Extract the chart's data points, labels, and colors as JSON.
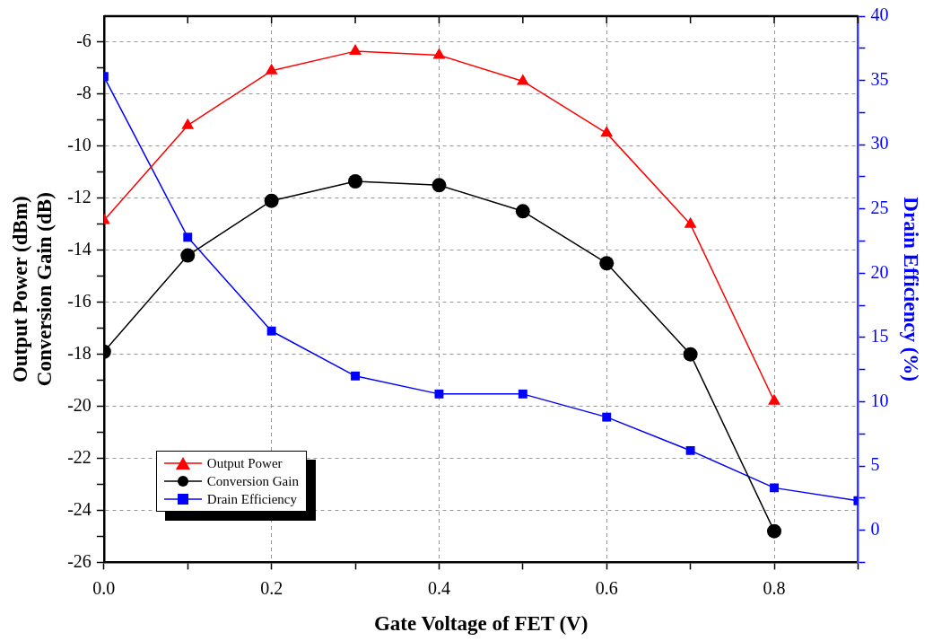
{
  "chart_data": {
    "type": "line",
    "xlabel": "Gate Voltage of FET (V)",
    "ylabel": "Output Power (dBm)\nConversion Gain (dB)",
    "y2label": "Drain Efficiency (%)",
    "x": [
      0,
      0.1,
      0.2,
      0.3,
      0.4,
      0.5,
      0.6,
      0.7,
      0.8
    ],
    "series": [
      {
        "name": "Output Power",
        "color": "#ff0000",
        "marker": "triangle",
        "values": [
          -12.85,
          -9.2,
          -7.1,
          -6.35,
          -6.5,
          -7.5,
          -9.5,
          -13.0,
          -19.8
        ]
      },
      {
        "name": "Conversion Gain",
        "color": "#000000",
        "marker": "circle",
        "values": [
          -17.9,
          -14.2,
          -12.1,
          -11.35,
          -11.5,
          -12.5,
          -14.5,
          -18.0,
          -24.8
        ]
      },
      {
        "name": "Drain Efficiency",
        "color": "#0000ff",
        "marker": "square",
        "axis": "y2",
        "x": [
          0,
          0.1,
          0.2,
          0.3,
          0.4,
          0.5,
          0.6,
          0.7,
          0.8,
          0.9
        ],
        "values": [
          35.3,
          22.8,
          15.5,
          12.0,
          10.6,
          10.6,
          8.8,
          6.2,
          3.3,
          2.3
        ]
      }
    ],
    "xlim": [
      0,
      0.9
    ],
    "xticks": [
      {
        "value": 0,
        "label": "0.0"
      },
      {
        "value": 0.1,
        "label": null
      },
      {
        "value": 0.2,
        "label": "0.2"
      },
      {
        "value": 0.3,
        "label": null
      },
      {
        "value": 0.4,
        "label": "0.4"
      },
      {
        "value": 0.5,
        "label": null
      },
      {
        "value": 0.6,
        "label": "0.6"
      },
      {
        "value": 0.7,
        "label": null
      },
      {
        "value": 0.8,
        "label": "0.8"
      },
      {
        "value": 0.9,
        "label": null
      }
    ],
    "ylim": [
      -26,
      -5
    ],
    "yticks": [
      -26,
      {
        "value": -25,
        "label": null
      },
      -24,
      {
        "value": -23,
        "label": null
      },
      -22,
      {
        "value": -21,
        "label": null
      },
      -20,
      {
        "value": -19,
        "label": null
      },
      -18,
      {
        "value": -17,
        "label": null
      },
      -16,
      {
        "value": -15,
        "label": null
      },
      -14,
      {
        "value": -13,
        "label": null
      },
      -12,
      {
        "value": -11,
        "label": null
      },
      -10,
      {
        "value": -9,
        "label": null
      },
      -8,
      {
        "value": -7,
        "label": null
      },
      -6
    ],
    "y2lim": [
      -2.5,
      40
    ],
    "y2ticks": [
      {
        "value": -2.5,
        "label": null
      },
      0,
      {
        "value": 2.5,
        "label": null
      },
      5,
      {
        "value": 7.5,
        "label": null
      },
      10,
      {
        "value": 12.5,
        "label": null
      },
      15,
      {
        "value": 17.5,
        "label": null
      },
      20,
      {
        "value": 22.5,
        "label": null
      },
      25,
      {
        "value": 27.5,
        "label": null
      },
      30,
      {
        "value": 32.5,
        "label": null
      },
      35,
      {
        "value": 37.5,
        "label": null
      },
      40
    ],
    "grid": true,
    "legend": "bottom left",
    "line_style": "solid"
  }
}
